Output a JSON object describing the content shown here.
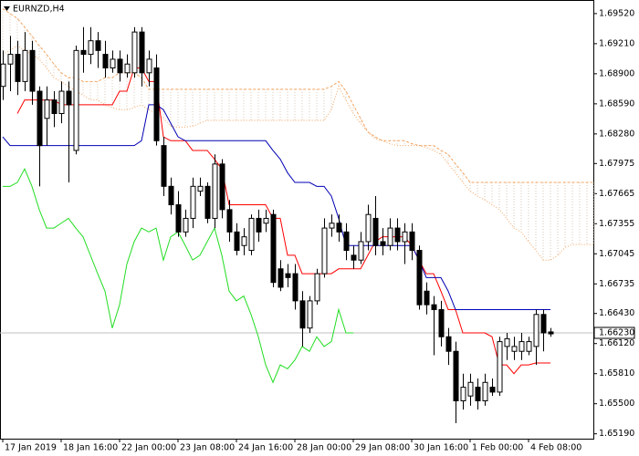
{
  "chart_data": {
    "type": "candlestick",
    "title": "EURNZD,H4",
    "categories": [
      "17 Jan 2019",
      null,
      null,
      null,
      null,
      null,
      null,
      null,
      "18 Jan 16:00",
      null,
      null,
      null,
      null,
      null,
      null,
      null,
      "22 Jan 00:00",
      null,
      null,
      null,
      null,
      null,
      null,
      null,
      "23 Jan 08:00",
      null,
      null,
      null,
      null,
      null,
      null,
      null,
      "24 Jan 16:00",
      null,
      null,
      null,
      null,
      null,
      null,
      null,
      "28 Jan 00:00",
      null,
      null,
      null,
      null,
      null,
      null,
      null,
      "29 Jan 08:00",
      null,
      null,
      null,
      null,
      null,
      null,
      null,
      "30 Jan 16:00",
      null,
      null,
      null,
      null,
      null,
      null,
      null,
      "1 Feb 00:00",
      null,
      null,
      null,
      null,
      null,
      null,
      null,
      "4 Feb 08:00",
      null,
      null,
      null,
      null,
      null,
      null,
      null,
      null,
      null
    ],
    "candles": {
      "up_color": "#ffffff",
      "down_color": "#000000",
      "edge_color": "#000000",
      "open": [
        1.6877,
        1.69,
        1.691,
        1.6882,
        1.6914,
        1.6872,
        1.6844,
        1.6863,
        1.6849,
        1.6872,
        1.6811,
        1.6914,
        1.691,
        1.6924,
        1.691,
        1.6896,
        1.6905,
        1.6891,
        1.6891,
        1.6933,
        1.6891,
        1.6896,
        1.6816,
        1.6774,
        1.6755,
        1.6727,
        1.6741,
        1.6769,
        1.6774,
        1.6741,
        1.6797,
        1.675,
        1.6727,
        1.6713,
        1.6708,
        1.6741,
        1.6736,
        1.6745,
        1.6689,
        1.6684,
        1.6684,
        1.6656,
        1.6628,
        1.6656,
        1.6684,
        1.6731,
        1.6736,
        1.6727,
        1.6703,
        1.6698,
        1.6717,
        1.6741,
        1.6717,
        1.6713,
        1.6731,
        1.6717,
        1.6727,
        1.6708,
        1.6666,
        1.6652,
        1.6647,
        1.6619,
        1.6604,
        1.6553,
        1.6558,
        1.6567,
        1.6553,
        1.6567,
        1.6562,
        1.6609,
        1.6604,
        1.6604,
        1.6604,
        1.6609,
        1.6642,
        1.6624,
        null,
        null,
        null,
        null,
        null,
        null
      ],
      "high": [
        1.6914,
        1.6929,
        1.6924,
        1.6933,
        1.6924,
        1.6877,
        1.6877,
        1.6872,
        1.6882,
        1.6882,
        1.6919,
        1.6938,
        1.6938,
        1.6933,
        1.6924,
        1.6914,
        1.6914,
        1.691,
        1.6938,
        1.6938,
        1.6914,
        1.691,
        1.6825,
        1.6783,
        1.6769,
        1.675,
        1.6783,
        1.6783,
        1.6778,
        1.6807,
        1.6802,
        1.676,
        1.6736,
        1.6731,
        1.6745,
        1.675,
        1.675,
        1.675,
        1.6698,
        1.6694,
        1.6694,
        1.6666,
        1.6661,
        1.6689,
        1.6741,
        1.6745,
        1.6745,
        1.6736,
        1.6713,
        1.6727,
        1.6755,
        1.6764,
        1.6731,
        1.6741,
        1.6741,
        1.6736,
        1.6736,
        1.6713,
        1.6675,
        1.6661,
        1.6656,
        1.6628,
        1.6614,
        1.6581,
        1.6581,
        1.6576,
        1.6581,
        1.6576,
        1.6619,
        1.6623,
        1.6619,
        1.6623,
        1.6619,
        1.6647,
        1.6647,
        1.6628,
        null,
        null,
        null,
        null,
        null,
        null
      ],
      "low": [
        1.6863,
        1.6872,
        1.6868,
        1.6872,
        1.6858,
        1.6774,
        1.6816,
        1.6835,
        1.6839,
        1.6778,
        1.6807,
        1.6891,
        1.69,
        1.6896,
        1.6886,
        1.6891,
        1.6882,
        1.6886,
        1.6886,
        1.6877,
        1.6877,
        1.6816,
        1.6764,
        1.6745,
        1.6722,
        1.6722,
        1.6731,
        1.6764,
        1.6736,
        1.6731,
        1.6741,
        1.6717,
        1.6703,
        1.6703,
        1.6703,
        1.6717,
        1.6727,
        1.667,
        1.6666,
        1.667,
        1.6647,
        1.6609,
        1.6623,
        1.6652,
        1.668,
        1.6722,
        1.6717,
        1.6698,
        1.6689,
        1.6694,
        1.6708,
        1.6703,
        1.6703,
        1.6708,
        1.6708,
        1.6694,
        1.6698,
        1.6647,
        1.6642,
        1.66,
        1.6609,
        1.659,
        1.653,
        1.6544,
        1.6548,
        1.6544,
        1.6548,
        1.6558,
        1.6558,
        1.6595,
        1.6595,
        1.6595,
        1.66,
        1.659,
        1.6604,
        1.6619,
        null,
        null,
        null,
        null,
        null,
        null
      ],
      "close": [
        1.69,
        1.691,
        1.6882,
        1.6914,
        1.6872,
        1.6816,
        1.6863,
        1.6849,
        1.6872,
        1.6858,
        1.6914,
        1.691,
        1.6924,
        1.6914,
        1.6896,
        1.6905,
        1.6891,
        1.69,
        1.6933,
        1.6891,
        1.6905,
        1.6821,
        1.6774,
        1.6755,
        1.6727,
        1.6741,
        1.6774,
        1.6774,
        1.6741,
        1.6797,
        1.675,
        1.6727,
        1.6708,
        1.6722,
        1.6741,
        1.6727,
        1.6741,
        1.6675,
        1.667,
        1.668,
        1.6656,
        1.6628,
        1.6656,
        1.6684,
        1.6731,
        1.6736,
        1.6727,
        1.6708,
        1.6698,
        1.6717,
        1.6745,
        1.6713,
        1.6713,
        1.6731,
        1.6717,
        1.6727,
        1.6708,
        1.6652,
        1.6652,
        1.6647,
        1.6619,
        1.6604,
        1.6553,
        1.6567,
        1.6572,
        1.6553,
        1.6572,
        1.6562,
        1.6614,
        1.6617,
        1.6609,
        1.6614,
        1.6614,
        1.6642,
        1.6623,
        1.6622,
        null,
        null,
        null,
        null,
        null,
        null
      ]
    },
    "cloud": {
      "color": "#f4a460",
      "hatch_color": "#d8c6b4",
      "span_a": [
        1.6957,
        1.6952,
        1.6947,
        1.6938,
        1.6929,
        1.6919,
        1.691,
        1.69,
        1.6891,
        1.6886,
        1.6886,
        1.6882,
        1.6882,
        1.6882,
        1.6886,
        1.6886,
        1.6891,
        1.6891,
        1.6891,
        1.6886,
        1.6874,
        1.6874,
        1.6874,
        1.6874,
        1.6874,
        1.6874,
        1.6874,
        1.6874,
        1.6874,
        1.6874,
        1.6874,
        1.6874,
        1.6874,
        1.6874,
        1.6874,
        1.6874,
        1.6874,
        1.6874,
        1.6874,
        1.6874,
        1.6874,
        1.6874,
        1.6874,
        1.6874,
        1.6874,
        1.6877,
        1.6882,
        1.6872,
        1.6858,
        1.6844,
        1.683,
        1.6825,
        1.6821,
        1.6821,
        1.6821,
        1.6821,
        1.6818,
        1.6816,
        1.6816,
        1.6816,
        1.6811,
        1.6807,
        1.6797,
        1.6788,
        1.6778,
        1.6778,
        1.6778,
        1.6778,
        1.6778,
        1.6778,
        1.6778,
        1.6778,
        1.6778,
        1.6778,
        1.6778,
        1.6778,
        1.6778,
        1.6778,
        1.6778,
        1.6778,
        1.6778,
        1.6778
      ],
      "span_b": [
        1.691,
        1.6914,
        1.6919,
        1.6914,
        1.691,
        1.6905,
        1.6896,
        1.6886,
        1.6882,
        1.6877,
        1.6872,
        1.6868,
        1.6863,
        1.6863,
        1.6858,
        1.6855,
        1.6853,
        1.6853,
        1.6855,
        1.6858,
        1.6853,
        1.6849,
        1.6844,
        1.6836,
        1.6835,
        1.6835,
        1.6836,
        1.6839,
        1.6842,
        1.6842,
        1.6842,
        1.6842,
        1.6842,
        1.6842,
        1.6842,
        1.6842,
        1.6842,
        1.6842,
        1.6842,
        1.6842,
        1.6842,
        1.6842,
        1.6842,
        1.6842,
        1.6842,
        1.6853,
        1.6877,
        1.6863,
        1.6849,
        1.6839,
        1.683,
        1.6823,
        1.6821,
        1.6818,
        1.6816,
        1.6816,
        1.6816,
        1.6816,
        1.6814,
        1.6811,
        1.6807,
        1.6797,
        1.6788,
        1.6778,
        1.6769,
        1.6764,
        1.676,
        1.6755,
        1.675,
        1.6741,
        1.6731,
        1.6727,
        1.6717,
        1.6708,
        1.6698,
        1.6698,
        1.6703,
        1.6711,
        1.6714,
        1.6714,
        1.6714,
        1.6714
      ]
    },
    "lines": [
      {
        "color": "#ff0000",
        "values": [
          null,
          null,
          1.6849,
          1.6863,
          1.6863,
          1.6863,
          1.6863,
          1.6863,
          1.6858,
          1.6858,
          1.6858,
          1.6858,
          1.6858,
          1.6858,
          1.6858,
          1.6858,
          1.6872,
          1.6872,
          1.6896,
          1.6896,
          1.6882,
          1.6882,
          1.6825,
          1.6821,
          1.6821,
          1.6821,
          1.6811,
          1.6811,
          1.6811,
          1.6802,
          1.6792,
          1.6755,
          1.6755,
          1.6755,
          1.6755,
          1.6755,
          1.6755,
          1.6741,
          1.6741,
          1.6703,
          1.6703,
          1.6684,
          1.6684,
          1.6684,
          1.6684,
          1.6684,
          1.6689,
          1.6689,
          1.6689,
          1.6689,
          1.6703,
          1.6717,
          1.6722,
          1.6722,
          1.6722,
          1.6722,
          1.6713,
          1.6698,
          1.6684,
          1.6684,
          1.6666,
          1.6647,
          1.6647,
          1.6623,
          1.6623,
          1.6623,
          1.6623,
          1.6619,
          1.659,
          1.659,
          1.6581,
          1.659,
          1.659,
          1.6592,
          1.6592,
          1.6592,
          null,
          null,
          null,
          null,
          null,
          null
        ]
      },
      {
        "color": "#0000b4",
        "values": [
          1.6825,
          1.6816,
          1.6816,
          1.6816,
          1.6816,
          1.6816,
          1.6816,
          1.6816,
          1.6816,
          1.6816,
          1.6816,
          1.6816,
          1.6816,
          1.6816,
          1.6816,
          1.6816,
          1.6816,
          1.6816,
          1.6816,
          1.6821,
          1.6858,
          1.6858,
          1.6853,
          1.6839,
          1.6825,
          1.6821,
          1.6821,
          1.6821,
          1.6821,
          1.6821,
          1.6821,
          1.6821,
          1.6821,
          1.6821,
          1.6821,
          1.6821,
          1.6821,
          1.6811,
          1.6802,
          1.6788,
          1.6778,
          1.6778,
          1.6778,
          1.6774,
          1.6774,
          1.6764,
          1.6741,
          1.6713,
          1.6713,
          1.6713,
          1.6713,
          1.6713,
          1.6713,
          1.6713,
          1.6713,
          1.6713,
          1.6713,
          1.6698,
          1.668,
          1.668,
          1.668,
          1.6666,
          1.6647,
          1.6647,
          1.6647,
          1.6647,
          1.6647,
          1.6647,
          1.6647,
          1.6647,
          1.6647,
          1.6647,
          1.6647,
          1.6647,
          1.6647,
          1.6647,
          null,
          null,
          null,
          null,
          null,
          null
        ]
      },
      {
        "color": "#22dd22",
        "values": [
          1.6774,
          1.6774,
          1.6778,
          1.6792,
          1.6774,
          1.675,
          1.6731,
          1.6731,
          1.6736,
          1.6741,
          1.6731,
          1.6722,
          1.6703,
          1.6684,
          1.6666,
          1.6628,
          1.6652,
          1.6694,
          1.6717,
          1.6731,
          1.6727,
          1.6731,
          1.6698,
          1.6722,
          1.6727,
          1.6713,
          1.6698,
          1.6703,
          1.6717,
          1.6731,
          1.6703,
          1.6666,
          1.6656,
          1.6661,
          1.6642,
          1.6619,
          1.659,
          1.6572,
          1.659,
          1.6586,
          1.6595,
          1.6609,
          1.6604,
          1.6619,
          1.6609,
          1.6614,
          1.6647,
          1.6623,
          1.6623,
          null,
          null,
          null,
          null,
          null,
          null,
          null,
          null,
          null,
          null,
          null,
          null,
          null,
          null,
          null,
          null,
          null,
          null,
          null,
          null,
          null,
          null,
          null,
          null,
          null,
          null,
          null,
          null,
          null,
          null,
          null,
          null,
          null
        ]
      }
    ],
    "bid": {
      "value": 1.6623,
      "label": "1.66230"
    },
    "ylim": [
      1.6514,
      1.6966
    ],
    "yticks": [
      {
        "value": 1.6952,
        "label": "1.69520"
      },
      {
        "value": 1.6921,
        "label": "1.69210"
      },
      {
        "value": 1.689,
        "label": "1.68900"
      },
      {
        "value": 1.6859,
        "label": "1.68590"
      },
      {
        "value": 1.6828,
        "label": "1.68280"
      },
      {
        "value": 1.67975,
        "label": "1.67975"
      },
      {
        "value": 1.67665,
        "label": "1.67665"
      },
      {
        "value": 1.67355,
        "label": "1.67355"
      },
      {
        "value": 1.67045,
        "label": "1.67045"
      },
      {
        "value": 1.66735,
        "label": "1.66735"
      },
      {
        "value": 1.6643,
        "label": "1.66430"
      },
      {
        "value": 1.6612,
        "label": "1.66120"
      },
      {
        "value": 1.6581,
        "label": "1.65810"
      },
      {
        "value": 1.655,
        "label": "1.65500"
      },
      {
        "value": 1.6519,
        "label": "1.65190"
      }
    ]
  }
}
